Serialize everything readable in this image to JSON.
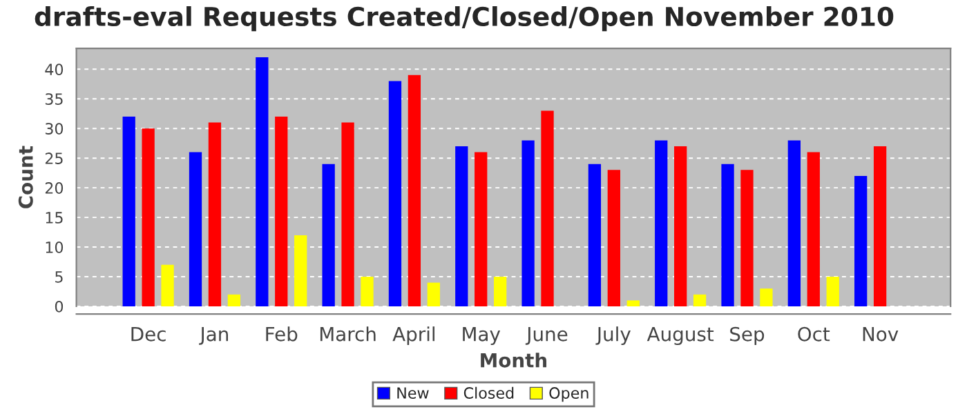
{
  "chart_data": {
    "type": "bar",
    "title": "drafts-eval Requests Created/Closed/Open November 2010",
    "xlabel": "Month",
    "ylabel": "Count",
    "categories": [
      "Dec",
      "Jan",
      "Feb",
      "March",
      "April",
      "May",
      "June",
      "July",
      "August",
      "Sep",
      "Oct",
      "Nov"
    ],
    "series": [
      {
        "name": "New",
        "color": "#0000ff",
        "values": [
          32,
          26,
          42,
          24,
          38,
          27,
          28,
          24,
          28,
          24,
          28,
          22
        ]
      },
      {
        "name": "Closed",
        "color": "#ff0000",
        "values": [
          30,
          31,
          32,
          31,
          39,
          26,
          33,
          23,
          27,
          23,
          26,
          27
        ]
      },
      {
        "name": "Open",
        "color": "#ffff00",
        "values": [
          7,
          2,
          12,
          5,
          4,
          5,
          0,
          1,
          2,
          3,
          5,
          0
        ]
      }
    ],
    "ylim": [
      0,
      43.5
    ],
    "yticks": [
      0,
      5,
      10,
      15,
      20,
      25,
      30,
      35,
      40
    ],
    "grid": "y",
    "legend": "bottom"
  }
}
